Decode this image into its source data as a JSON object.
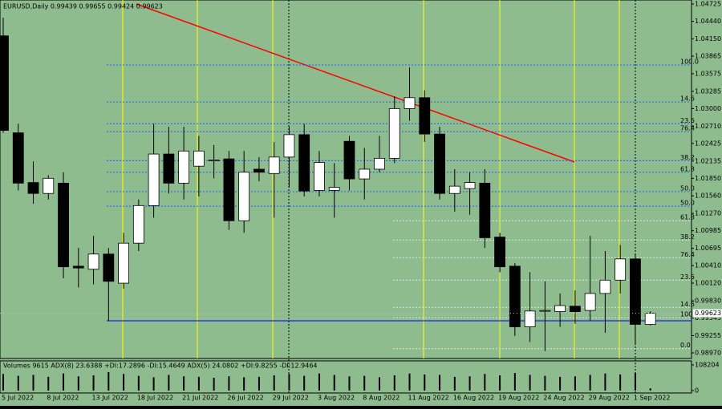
{
  "chart_data": {
    "type": "candlestick",
    "title": "EURUSD,Daily  0.99439 0.99655 0.99424 0.99623",
    "categories": [
      "5 Jul 2022",
      null,
      null,
      "8 Jul 2022",
      null,
      null,
      "13 Jul 2022",
      null,
      null,
      "18 Jul 2022",
      null,
      null,
      "21 Jul 2022",
      null,
      null,
      "26 Jul 2022",
      null,
      null,
      "29 Jul 2022",
      null,
      null,
      "3 Aug 2022",
      null,
      null,
      "8 Aug 2022",
      null,
      null,
      "11 Aug 2022",
      null,
      null,
      "16 Aug 2022",
      null,
      null,
      "19 Aug 2022",
      null,
      null,
      "24 Aug 2022",
      null,
      null,
      "29 Aug 2022",
      null,
      null,
      "1 Sep 2022",
      null
    ],
    "open": [
      1.042,
      1.026,
      1.0178,
      1.016,
      1.0177,
      1.004,
      1.0035,
      1.006,
      1.0012,
      1.0078,
      1.014,
      1.0225,
      1.0177,
      1.0205,
      1.0215,
      1.0217,
      1.0115,
      1.02,
      1.0193,
      1.022,
      1.0257,
      1.0165,
      1.0165,
      1.0246,
      1.0184,
      1.02,
      1.0218,
      1.03,
      1.0318,
      1.0258,
      1.016,
      1.0168,
      1.0177,
      1.0088,
      1.004,
      0.994,
      0.9966,
      0.9965,
      0.9974,
      0.9967,
      0.9995,
      1.0017,
      1.0052,
      0.99439
    ],
    "high": [
      1.045,
      1.0275,
      1.0213,
      1.019,
      1.0195,
      1.007,
      1.009,
      1.007,
      1.0095,
      1.015,
      1.0275,
      1.027,
      1.027,
      1.0255,
      1.024,
      1.023,
      1.023,
      1.022,
      1.0245,
      1.027,
      1.0275,
      1.023,
      1.021,
      1.0255,
      1.0235,
      1.0255,
      1.032,
      1.0368,
      1.033,
      1.027,
      1.02,
      1.0195,
      1.02,
      1.0095,
      1.0045,
      1.003,
      1.0015,
      0.9995,
      1.0,
      1.009,
      1.0065,
      1.0075,
      1.006,
      0.99655
    ],
    "low": [
      1.026,
      1.0165,
      1.0143,
      1.015,
      1.002,
      1.0005,
      1.001,
      0.995,
      1.0003,
      1.0065,
      1.012,
      1.016,
      1.015,
      1.0155,
      1.0185,
      1.01,
      1.0095,
      1.018,
      1.012,
      1.017,
      1.0155,
      1.0155,
      1.012,
      1.0165,
      1.015,
      1.0195,
      1.021,
      1.028,
      1.0245,
      1.015,
      1.013,
      1.0125,
      1.007,
      1.003,
      0.9925,
      0.9915,
      0.99,
      0.994,
      0.9945,
      0.995,
      0.993,
      0.9995,
      0.991,
      0.99424
    ],
    "close": [
      1.0264,
      1.0177,
      1.016,
      1.0185,
      1.0039,
      1.0037,
      1.006,
      1.0015,
      1.0078,
      1.014,
      1.0225,
      1.0177,
      1.023,
      1.023,
      1.0215,
      1.0115,
      1.0195,
      1.0195,
      1.022,
      1.0257,
      1.0164,
      1.0211,
      1.017,
      1.0184,
      1.02,
      1.0218,
      1.03,
      1.0318,
      1.0258,
      1.016,
      1.0172,
      1.0178,
      1.0087,
      1.0039,
      0.994,
      0.9966,
      0.9967,
      0.9975,
      0.9965,
      0.9995,
      1.0017,
      1.0052,
      0.9944,
      0.99623
    ],
    "ylim": [
      0.9897,
      1.04725
    ],
    "yticks": [
      1.04725,
      {
        "value": 1.0444,
        "label": "1.04440"
      },
      {
        "value": 1.0415,
        "label": "1.04150"
      },
      1.03865,
      1.03575,
      1.03285,
      {
        "value": 1.03,
        "label": "1.03000"
      },
      {
        "value": 1.0271,
        "label": "1.02710"
      },
      1.02425,
      1.02135,
      {
        "value": 1.0185,
        "label": "1.01850"
      },
      {
        "value": 1.0156,
        "label": "1.01560"
      },
      {
        "value": 1.0127,
        "label": "1.01270"
      },
      1.00985,
      1.00695,
      {
        "value": 1.0041,
        "label": "1.00410"
      },
      {
        "value": 1.0012,
        "label": "1.00120"
      },
      {
        "value": 0.9983,
        "label": "0.99830"
      },
      0.99545,
      0.99255,
      {
        "value": 0.9897,
        "label": "0.98970"
      }
    ],
    "last_price": 0.99623,
    "fib_levels": [
      {
        "label": "100.0",
        "value": 1.0372
      },
      {
        "label": "14.6",
        "value": 1.0311
      },
      {
        "label": "23.6",
        "value": 1.0275
      },
      {
        "label": "76.4",
        "value": 1.0262
      },
      {
        "label": "38.2",
        "value": 1.0214
      },
      {
        "label": "61.8",
        "value": 1.0195
      },
      {
        "label": "50.0",
        "value": 1.0163
      },
      {
        "label": "50.0",
        "value": 1.0139
      },
      {
        "label": "61.8",
        "value": 1.0115
      },
      {
        "label": "38.2",
        "value": 1.0083
      },
      {
        "label": "76.4",
        "value": 1.0054
      },
      {
        "label": "23.6",
        "value": 1.0017
      },
      {
        "label": "14.6",
        "value": 0.9972
      },
      {
        "label": "100.0",
        "value": 0.9955
      },
      {
        "label": "0.0",
        "value": 0.9904
      }
    ],
    "volume": {
      "label": "Volumes 9615  ADX(8) 23.6388 +DI:17.2896 -DI:15.4649  ADX(5) 24.0802 +DI:9.8255 -DI:12.9464",
      "values": [
        70000,
        62000,
        66000,
        58000,
        72000,
        60000,
        64000,
        78000,
        70000,
        62000,
        56000,
        66000,
        60000,
        58000,
        54000,
        60000,
        56000,
        58000,
        64000,
        70000,
        62000,
        72000,
        66000,
        60000,
        62000,
        56000,
        64000,
        72000,
        68000,
        66000,
        58000,
        60000,
        70000,
        64000,
        74000,
        66000,
        62000,
        58000,
        60000,
        66000,
        72000,
        68000,
        74000,
        9615
      ],
      "ylim": [
        0,
        108204
      ],
      "yticks": [
        108204,
        0
      ]
    }
  }
}
